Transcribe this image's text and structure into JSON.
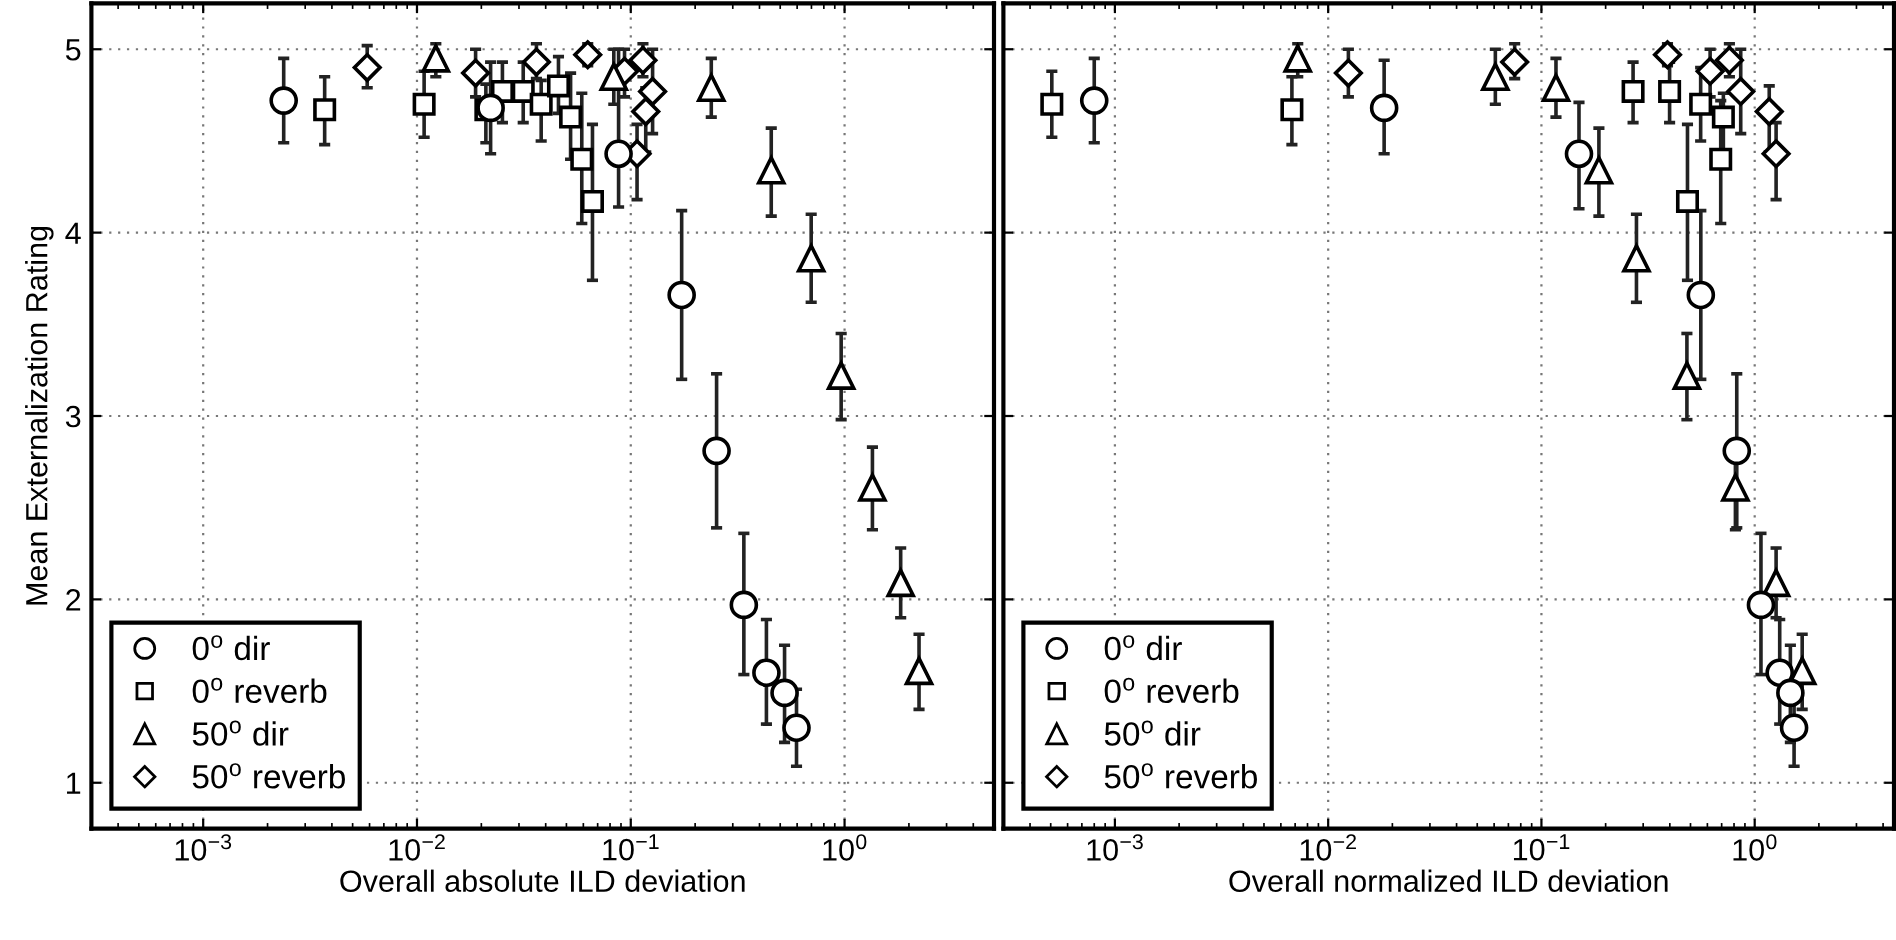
{
  "chart_data": [
    {
      "type": "scatter",
      "xlabel": "Overall absolute ILD deviation",
      "ylabel": "Mean Externalization Rating",
      "log": "x",
      "grid": true,
      "legend": "bottom left",
      "xlim": [
        0.0003,
        5
      ],
      "ylim": [
        0.75,
        5.25
      ],
      "xticks": [
        {
          "value": 0.001,
          "label": "10$^{−3}$"
        },
        {
          "value": 0.01,
          "label": "10$^{−2}$"
        },
        {
          "value": 0.1,
          "label": "10$^{−1}$"
        },
        {
          "value": 1,
          "label": "10$^{0}$"
        }
      ],
      "yticks": [
        1,
        2,
        3,
        4,
        5
      ],
      "series": [
        {
          "name": "0$^{o}$ dir",
          "marker": "circle",
          "color": "#000000",
          "x": [
            0.00238,
            0.0221,
            0.0877,
            0.173,
            0.252,
            0.338,
            0.431,
            0.524,
            0.596
          ],
          "values": [
            4.72,
            4.68,
            4.43,
            3.66,
            2.81,
            1.97,
            1.6,
            1.49,
            1.3
          ],
          "errors": [
            [
              4.49,
              4.95
            ],
            [
              4.43,
              4.93
            ],
            [
              4.14,
              5.0
            ],
            [
              3.2,
              4.12
            ],
            [
              2.39,
              3.23
            ],
            [
              1.59,
              2.36
            ],
            [
              1.32,
              1.89
            ],
            [
              1.22,
              1.75
            ],
            [
              1.09,
              1.51
            ]
          ]
        },
        {
          "name": "0$^{o}$ reverb",
          "marker": "square",
          "color": "#000000",
          "x": [
            0.0037,
            0.0108,
            0.021,
            0.0251,
            0.0314,
            0.0381,
            0.0459,
            0.0523,
            0.059,
            0.0662
          ],
          "values": [
            4.67,
            4.7,
            4.67,
            4.77,
            4.77,
            4.7,
            4.8,
            4.63,
            4.4,
            4.17
          ],
          "errors": [
            [
              4.48,
              4.85
            ],
            [
              4.52,
              4.88
            ],
            [
              4.49,
              4.81
            ],
            [
              4.6,
              4.93
            ],
            [
              4.6,
              4.93
            ],
            [
              4.5,
              4.83
            ],
            [
              4.65,
              4.96
            ],
            [
              4.4,
              4.87
            ],
            [
              4.05,
              4.76
            ],
            [
              3.74,
              4.59
            ]
          ]
        },
        {
          "name": "50$^{o}$ dir",
          "marker": "triangle",
          "color": "#000000",
          "x": [
            0.01225,
            0.0833,
            0.238,
            0.454,
            0.698,
            0.964,
            1.35,
            1.83,
            2.23
          ],
          "values": [
            4.95,
            4.85,
            4.79,
            4.34,
            3.86,
            3.22,
            2.61,
            2.09,
            1.61
          ],
          "errors": [
            [
              4.85,
              5.03
            ],
            [
              4.7,
              5.0
            ],
            [
              4.63,
              4.95
            ],
            [
              4.09,
              4.57
            ],
            [
              3.62,
              4.1
            ],
            [
              2.98,
              3.45
            ],
            [
              2.38,
              2.83
            ],
            [
              1.9,
              2.28
            ],
            [
              1.4,
              1.81
            ]
          ]
        },
        {
          "name": "50$^{o}$ reverb",
          "marker": "diamond",
          "color": "#000000",
          "x": [
            0.00585,
            0.0188,
            0.0362,
            0.0629,
            0.0935,
            0.114,
            0.107,
            0.1175,
            0.1265
          ],
          "values": [
            4.9,
            4.87,
            4.93,
            4.97,
            4.88,
            4.94,
            4.43,
            4.66,
            4.77
          ],
          "errors": [
            [
              4.79,
              5.02
            ],
            [
              4.74,
              5.0
            ],
            [
              4.84,
              5.03
            ],
            [
              4.91,
              5.03
            ],
            [
              4.74,
              5.0
            ],
            [
              4.85,
              5.03
            ],
            [
              4.18,
              4.59
            ],
            [
              4.44,
              4.79
            ],
            [
              4.54,
              5.0
            ]
          ]
        }
      ]
    },
    {
      "type": "scatter",
      "xlabel": "Overall normalized ILD deviation",
      "log": "x",
      "grid": true,
      "legend": "bottom left",
      "tick_labels": "x",
      "xlim": [
        0.0003,
        4.5
      ],
      "ylim": [
        0.75,
        5.25
      ],
      "xticks": [
        {
          "value": 0.001,
          "label": "10$^{−3}$"
        },
        {
          "value": 0.01,
          "label": "10$^{−2}$"
        },
        {
          "value": 0.1,
          "label": "10$^{−1}$"
        },
        {
          "value": 1,
          "label": "10$^{0}$"
        }
      ],
      "yticks": [
        1,
        2,
        3,
        4,
        5
      ],
      "series": [
        {
          "name": "0$^{o}$ dir",
          "marker": "circle",
          "color": "#000000",
          "x": [
            0.0008,
            0.0183,
            0.15,
            0.559,
            0.824,
            1.07,
            1.31,
            1.47,
            1.53
          ],
          "values": [
            4.72,
            4.68,
            4.43,
            3.66,
            2.81,
            1.97,
            1.6,
            1.49,
            1.3
          ],
          "errors": [
            [
              4.49,
              4.95
            ],
            [
              4.43,
              4.94
            ],
            [
              4.13,
              4.71
            ],
            [
              3.2,
              4.12
            ],
            [
              2.39,
              3.23
            ],
            [
              1.59,
              2.36
            ],
            [
              1.32,
              1.89
            ],
            [
              1.22,
              1.75
            ],
            [
              1.09,
              1.51
            ]
          ]
        },
        {
          "name": "0$^{o}$ reverb",
          "marker": "square",
          "color": "#000000",
          "x": [
            0.000506,
            0.00676,
            0.269,
            0.399,
            0.558,
            0.713,
            0.693,
            0.484
          ],
          "values": [
            4.7,
            4.67,
            4.77,
            4.77,
            4.7,
            4.63,
            4.4,
            4.17
          ],
          "errors": [
            [
              4.52,
              4.88
            ],
            [
              4.48,
              4.85
            ],
            [
              4.6,
              4.93
            ],
            [
              4.6,
              4.93
            ],
            [
              4.5,
              4.9
            ],
            [
              4.43,
              4.76
            ],
            [
              4.05,
              4.72
            ],
            [
              3.74,
              4.59
            ]
          ]
        },
        {
          "name": "50$^{o}$ dir",
          "marker": "triangle",
          "color": "#000000",
          "x": [
            0.0072,
            0.0608,
            0.117,
            0.186,
            0.279,
            0.481,
            0.812,
            1.26,
            1.67
          ],
          "values": [
            4.95,
            4.85,
            4.79,
            4.34,
            3.86,
            3.22,
            2.61,
            2.09,
            1.61
          ],
          "errors": [
            [
              4.85,
              5.03
            ],
            [
              4.7,
              5.0
            ],
            [
              4.63,
              4.95
            ],
            [
              4.09,
              4.57
            ],
            [
              3.62,
              4.1
            ],
            [
              2.98,
              3.45
            ],
            [
              2.38,
              2.83
            ],
            [
              1.9,
              2.28
            ],
            [
              1.4,
              1.81
            ]
          ]
        },
        {
          "name": "50$^{o}$ reverb",
          "marker": "diamond",
          "color": "#000000",
          "x": [
            0.01244,
            0.0749,
            0.39,
            0.618,
            0.761,
            0.86,
            1.17,
            1.26
          ],
          "values": [
            4.87,
            4.93,
            4.97,
            4.88,
            4.94,
            4.77,
            4.66,
            4.43
          ],
          "errors": [
            [
              4.74,
              5.0
            ],
            [
              4.84,
              5.03
            ],
            [
              4.91,
              5.03
            ],
            [
              4.74,
              5.0
            ],
            [
              4.85,
              5.03
            ],
            [
              4.54,
              5.0
            ],
            [
              4.44,
              4.8
            ],
            [
              4.18,
              4.6
            ]
          ]
        }
      ]
    }
  ]
}
